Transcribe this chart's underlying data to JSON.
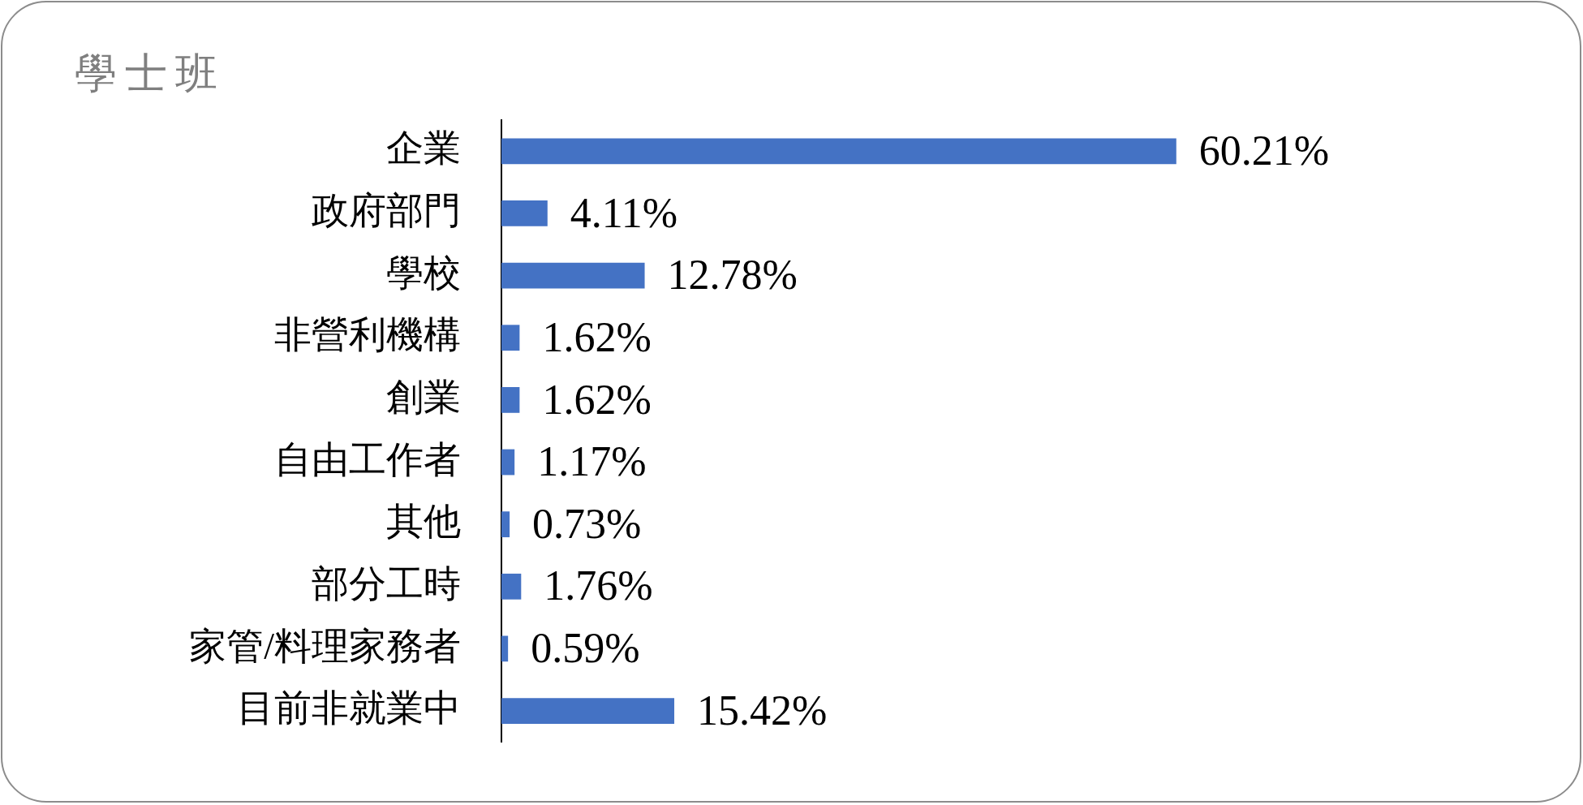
{
  "chart_data": {
    "type": "bar",
    "orientation": "horizontal",
    "title": "學士班",
    "categories": [
      "企業",
      "政府部門",
      "學校",
      "非營利機構",
      "創業",
      "自由工作者",
      "其他",
      "部分工時",
      "家管/料理家務者",
      "目前非就業中"
    ],
    "values": [
      60.21,
      4.11,
      12.78,
      1.62,
      1.62,
      1.17,
      0.73,
      1.76,
      0.59,
      15.42
    ],
    "value_labels": [
      "60.21%",
      "4.11%",
      "12.78%",
      "1.62%",
      "1.62%",
      "1.17%",
      "0.73%",
      "1.76%",
      "0.59%",
      "15.42%"
    ],
    "color": "#4472c4",
    "tick_labels": "y",
    "grid": false
  }
}
